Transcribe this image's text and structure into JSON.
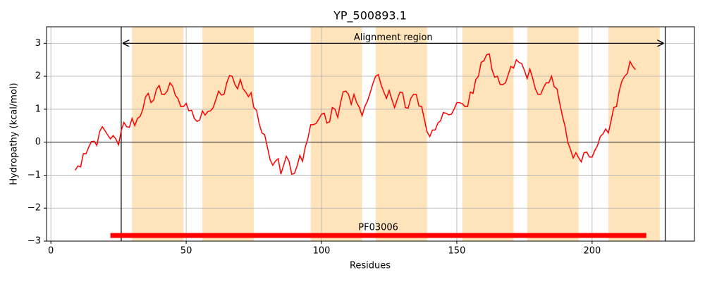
{
  "chart_data": {
    "type": "line",
    "title": "YP_500893.1",
    "xlabel": "Residues",
    "ylabel": "Hydropathy (kcal/mol)",
    "xlim": [
      -1.6,
      237.8
    ],
    "ylim": [
      -3,
      3.5
    ],
    "xticks": [
      0,
      50,
      100,
      150,
      200
    ],
    "yticks": [
      {
        "value": -3,
        "label": "−3"
      },
      {
        "value": -2,
        "label": "−2"
      },
      {
        "value": -1,
        "label": "−1"
      },
      0,
      1,
      2,
      3
    ],
    "grid": true,
    "zero_line": true,
    "regions": [
      [
        30,
        49
      ],
      [
        56,
        75
      ],
      [
        96,
        115
      ],
      [
        120,
        139
      ],
      [
        152,
        171
      ],
      [
        176,
        195
      ],
      [
        206,
        225
      ]
    ],
    "region_color": "#ffe4bb",
    "vlines": [
      26,
      227
    ],
    "annotation": {
      "text": "Alignment region",
      "x": [
        26,
        227
      ],
      "y": 3
    },
    "domain": {
      "label": "PF03006",
      "x": [
        22,
        220
      ],
      "y": -2.83,
      "color": "#ff0000"
    },
    "x": [
      9,
      10,
      11,
      12,
      13,
      14,
      15,
      16,
      17,
      18,
      19,
      20,
      21,
      22,
      23,
      24,
      25,
      26,
      27,
      28,
      29,
      30,
      31,
      32,
      33,
      34,
      35,
      36,
      37,
      38,
      39,
      40,
      41,
      42,
      43,
      44,
      45,
      46,
      47,
      48,
      49,
      50,
      51,
      52,
      53,
      54,
      55,
      56,
      57,
      58,
      59,
      60,
      61,
      62,
      63,
      64,
      65,
      66,
      67,
      68,
      69,
      70,
      71,
      72,
      73,
      74,
      75,
      76,
      77,
      78,
      79,
      80,
      81,
      82,
      83,
      84,
      85,
      86,
      87,
      88,
      89,
      90,
      91,
      92,
      93,
      94,
      95,
      96,
      97,
      98,
      99,
      100,
      101,
      102,
      103,
      104,
      105,
      106,
      107,
      108,
      109,
      110,
      111,
      112,
      113,
      114,
      115,
      116,
      117,
      118,
      119,
      120,
      121,
      122,
      123,
      124,
      125,
      126,
      127,
      128,
      129,
      130,
      131,
      132,
      133,
      134,
      135,
      136,
      137,
      138,
      139,
      140,
      141,
      142,
      143,
      144,
      145,
      146,
      147,
      148,
      149,
      150,
      151,
      152,
      153,
      154,
      155,
      156,
      157,
      158,
      159,
      160,
      161,
      162,
      163,
      164,
      165,
      166,
      167,
      168,
      169,
      170,
      171,
      172,
      173,
      174,
      175,
      176,
      177,
      178,
      179,
      180,
      181,
      182,
      183,
      184,
      185,
      186,
      187,
      188,
      189,
      190,
      191,
      192,
      193,
      194,
      195,
      196,
      197,
      198,
      199,
      200,
      201,
      202,
      203,
      204,
      205,
      206,
      207,
      208,
      209,
      210,
      211,
      212,
      213,
      214,
      215,
      216
    ],
    "series": [
      {
        "color": "#ff0000",
        "values": [
          -0.85,
          -0.72,
          -0.75,
          -0.35,
          -0.35,
          -0.15,
          0.02,
          0.03,
          -0.1,
          0.32,
          0.47,
          0.35,
          0.22,
          0.1,
          0.2,
          0.1,
          -0.08,
          0.35,
          0.6,
          0.47,
          0.45,
          0.72,
          0.5,
          0.72,
          0.78,
          1.0,
          1.38,
          1.48,
          1.2,
          1.28,
          1.6,
          1.72,
          1.45,
          1.45,
          1.55,
          1.8,
          1.7,
          1.42,
          1.32,
          1.08,
          1.08,
          1.18,
          0.95,
          0.97,
          0.72,
          0.63,
          0.67,
          0.95,
          0.82,
          0.93,
          0.95,
          1.05,
          1.3,
          1.55,
          1.43,
          1.45,
          1.8,
          2.02,
          2.0,
          1.75,
          1.62,
          1.9,
          1.62,
          1.52,
          1.38,
          1.5,
          1.05,
          0.97,
          0.55,
          0.28,
          0.23,
          -0.15,
          -0.53,
          -0.7,
          -0.57,
          -0.5,
          -0.97,
          -0.7,
          -0.43,
          -0.58,
          -0.97,
          -0.95,
          -0.72,
          -0.4,
          -0.58,
          -0.15,
          0.12,
          0.53,
          0.53,
          0.57,
          0.7,
          0.85,
          0.88,
          0.58,
          0.62,
          1.05,
          1.0,
          0.75,
          1.18,
          1.53,
          1.55,
          1.45,
          1.15,
          1.45,
          1.2,
          1.05,
          0.8,
          1.08,
          1.25,
          1.5,
          1.78,
          2.0,
          2.05,
          1.75,
          1.53,
          1.33,
          1.57,
          1.3,
          1.05,
          1.3,
          1.52,
          1.5,
          1.05,
          1.03,
          1.33,
          1.45,
          1.45,
          1.1,
          1.08,
          0.7,
          0.32,
          0.17,
          0.37,
          0.37,
          0.58,
          0.65,
          0.9,
          0.88,
          0.83,
          0.85,
          1.0,
          1.2,
          1.2,
          1.17,
          1.08,
          1.08,
          1.52,
          1.48,
          1.9,
          2.0,
          2.42,
          2.47,
          2.65,
          2.68,
          2.2,
          1.97,
          2.0,
          1.75,
          1.75,
          1.8,
          2.05,
          2.3,
          2.25,
          2.5,
          2.42,
          2.38,
          2.17,
          1.93,
          2.22,
          1.95,
          1.62,
          1.45,
          1.45,
          1.65,
          1.8,
          1.8,
          2.0,
          1.68,
          1.62,
          1.2,
          0.8,
          0.48,
          0.0,
          -0.22,
          -0.48,
          -0.32,
          -0.47,
          -0.6,
          -0.32,
          -0.3,
          -0.45,
          -0.45,
          -0.25,
          -0.1,
          0.17,
          0.25,
          0.4,
          0.28,
          0.65,
          1.05,
          1.08,
          1.55,
          1.85,
          2.0,
          2.08,
          2.45,
          2.3,
          2.2
        ]
      }
    ]
  }
}
